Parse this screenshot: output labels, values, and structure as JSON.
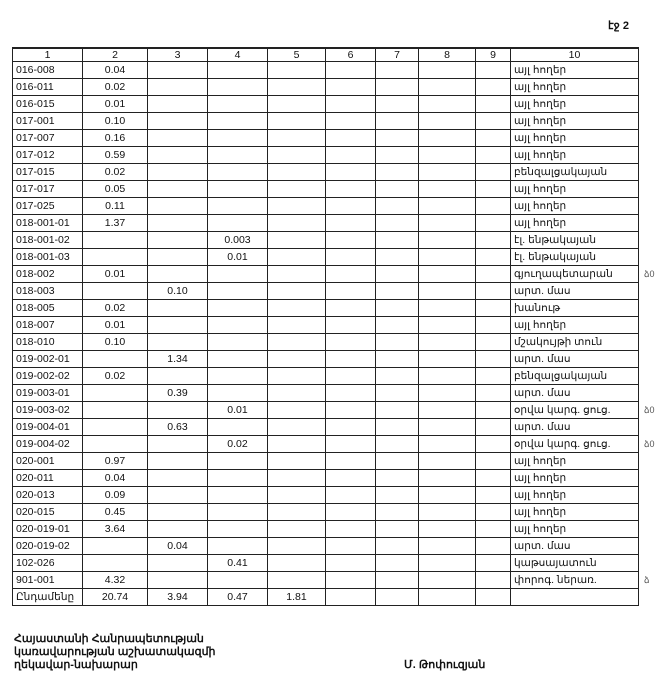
{
  "page_number": "էջ 2",
  "columns": [
    "1",
    "2",
    "3",
    "4",
    "5",
    "6",
    "7",
    "8",
    "9",
    "10"
  ],
  "rows": [
    {
      "c": [
        "016-008",
        "0.04",
        "",
        "",
        "",
        "",
        "",
        "",
        "",
        "այլ հողեր"
      ]
    },
    {
      "c": [
        "016-011",
        "0.02",
        "",
        "",
        "",
        "",
        "",
        "",
        "",
        "այլ հողեր"
      ]
    },
    {
      "c": [
        "016-015",
        "0.01",
        "",
        "",
        "",
        "",
        "",
        "",
        "",
        "այլ հողեր"
      ]
    },
    {
      "c": [
        "017-001",
        "0.10",
        "",
        "",
        "",
        "",
        "",
        "",
        "",
        "այլ հողեր"
      ]
    },
    {
      "c": [
        "017-007",
        "0.16",
        "",
        "",
        "",
        "",
        "",
        "",
        "",
        "այլ հողեր"
      ]
    },
    {
      "c": [
        "017-012",
        "0.59",
        "",
        "",
        "",
        "",
        "",
        "",
        "",
        "այլ հողեր"
      ]
    },
    {
      "c": [
        "017-015",
        "0.02",
        "",
        "",
        "",
        "",
        "",
        "",
        "",
        "բենզալցակայան"
      ]
    },
    {
      "c": [
        "017-017",
        "0.05",
        "",
        "",
        "",
        "",
        "",
        "",
        "",
        "այլ հողեր"
      ]
    },
    {
      "c": [
        "017-025",
        "0.11",
        "",
        "",
        "",
        "",
        "",
        "",
        "",
        "այլ հողեր"
      ]
    },
    {
      "c": [
        "018-001-01",
        "1.37",
        "",
        "",
        "",
        "",
        "",
        "",
        "",
        "այլ հողեր"
      ]
    },
    {
      "c": [
        "018-001-02",
        "",
        "",
        "0.003",
        "",
        "",
        "",
        "",
        "",
        "էլ. ենթակայան"
      ]
    },
    {
      "c": [
        "018-001-03",
        "",
        "",
        "0.01",
        "",
        "",
        "",
        "",
        "",
        "էլ. ենթակայան"
      ]
    },
    {
      "c": [
        "018-002",
        "0.01",
        "",
        "",
        "",
        "",
        "",
        "",
        "",
        "գյուղապետարան"
      ],
      "side": "ձ0"
    },
    {
      "c": [
        "018-003",
        "",
        "0.10",
        "",
        "",
        "",
        "",
        "",
        "",
        "արտ. մաս"
      ]
    },
    {
      "c": [
        "018-005",
        "0.02",
        "",
        "",
        "",
        "",
        "",
        "",
        "",
        "խանութ"
      ]
    },
    {
      "c": [
        "018-007",
        "0.01",
        "",
        "",
        "",
        "",
        "",
        "",
        "",
        "այլ հողեր"
      ]
    },
    {
      "c": [
        "018-010",
        "0.10",
        "",
        "",
        "",
        "",
        "",
        "",
        "",
        "մշակույթի տուն"
      ]
    },
    {
      "c": [
        "019-002-01",
        "",
        "1.34",
        "",
        "",
        "",
        "",
        "",
        "",
        "արտ. մաս"
      ]
    },
    {
      "c": [
        "019-002-02",
        "0.02",
        "",
        "",
        "",
        "",
        "",
        "",
        "",
        "բենզալցակայան"
      ]
    },
    {
      "c": [
        "019-003-01",
        "",
        "0.39",
        "",
        "",
        "",
        "",
        "",
        "",
        "արտ. մաս"
      ]
    },
    {
      "c": [
        "019-003-02",
        "",
        "",
        "0.01",
        "",
        "",
        "",
        "",
        "",
        "օրվա կարգ. ցուց."
      ],
      "side": "ձ0"
    },
    {
      "c": [
        "019-004-01",
        "",
        "0.63",
        "",
        "",
        "",
        "",
        "",
        "",
        "արտ. մաս"
      ]
    },
    {
      "c": [
        "019-004-02",
        "",
        "",
        "0.02",
        "",
        "",
        "",
        "",
        "",
        "օրվա կարգ. ցուց."
      ],
      "side": "ձ0"
    },
    {
      "c": [
        "020-001",
        "0.97",
        "",
        "",
        "",
        "",
        "",
        "",
        "",
        "այլ հողեր"
      ]
    },
    {
      "c": [
        "020-011",
        "0.04",
        "",
        "",
        "",
        "",
        "",
        "",
        "",
        "այլ հողեր"
      ]
    },
    {
      "c": [
        "020-013",
        "0.09",
        "",
        "",
        "",
        "",
        "",
        "",
        "",
        "այլ հողեր"
      ]
    },
    {
      "c": [
        "020-015",
        "0.45",
        "",
        "",
        "",
        "",
        "",
        "",
        "",
        "այլ հողեր"
      ]
    },
    {
      "c": [
        "020-019-01",
        "3.64",
        "",
        "",
        "",
        "",
        "",
        "",
        "",
        "այլ հողեր"
      ]
    },
    {
      "c": [
        "020-019-02",
        "",
        "0.04",
        "",
        "",
        "",
        "",
        "",
        "",
        "արտ. մաս"
      ]
    },
    {
      "c": [
        "102-026",
        "",
        "",
        "0.41",
        "",
        "",
        "",
        "",
        "",
        "կաթսայատուն"
      ]
    },
    {
      "c": [
        "901-001",
        "4.32",
        "",
        "",
        "",
        "",
        "",
        "",
        "",
        "փորոգ. ներառ."
      ],
      "side": "ձ"
    }
  ],
  "total": [
    "Ընդամենը",
    "20.74",
    "3.94",
    "0.47",
    "1.81",
    "",
    "",
    "",
    "",
    ""
  ],
  "footer": {
    "line1": "Հայաստանի Հանրապետության",
    "line2": "կառավարության աշխատակազմի",
    "line3": "ղեկավար-նախարար",
    "signer": "Մ. Թոփուզյան"
  }
}
